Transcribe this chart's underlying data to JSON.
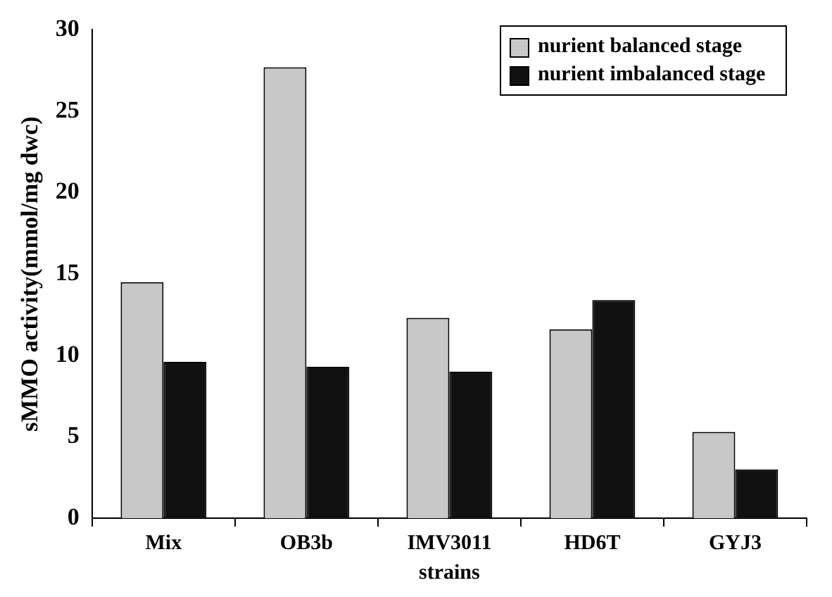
{
  "chart_data": {
    "type": "bar",
    "xlabel": "strains",
    "ylabel": "sMMO activity(mmol/mg dwc)",
    "categories": [
      "Mix",
      "OB3b",
      "IMV3011",
      "HD6T",
      "GYJ3"
    ],
    "series": [
      {
        "name": "nurient balanced stage",
        "color": "#c8c8c8",
        "values": [
          14.5,
          27.7,
          12.3,
          11.6,
          5.3
        ]
      },
      {
        "name": "nurient imbalanced stage",
        "color": "#111111",
        "values": [
          9.6,
          9.3,
          9.0,
          13.4,
          3.0
        ]
      }
    ],
    "ylim": [
      0,
      30
    ],
    "yticks": [
      0,
      5,
      10,
      15,
      20,
      25,
      30
    ],
    "grid": false,
    "legend": "top right"
  }
}
